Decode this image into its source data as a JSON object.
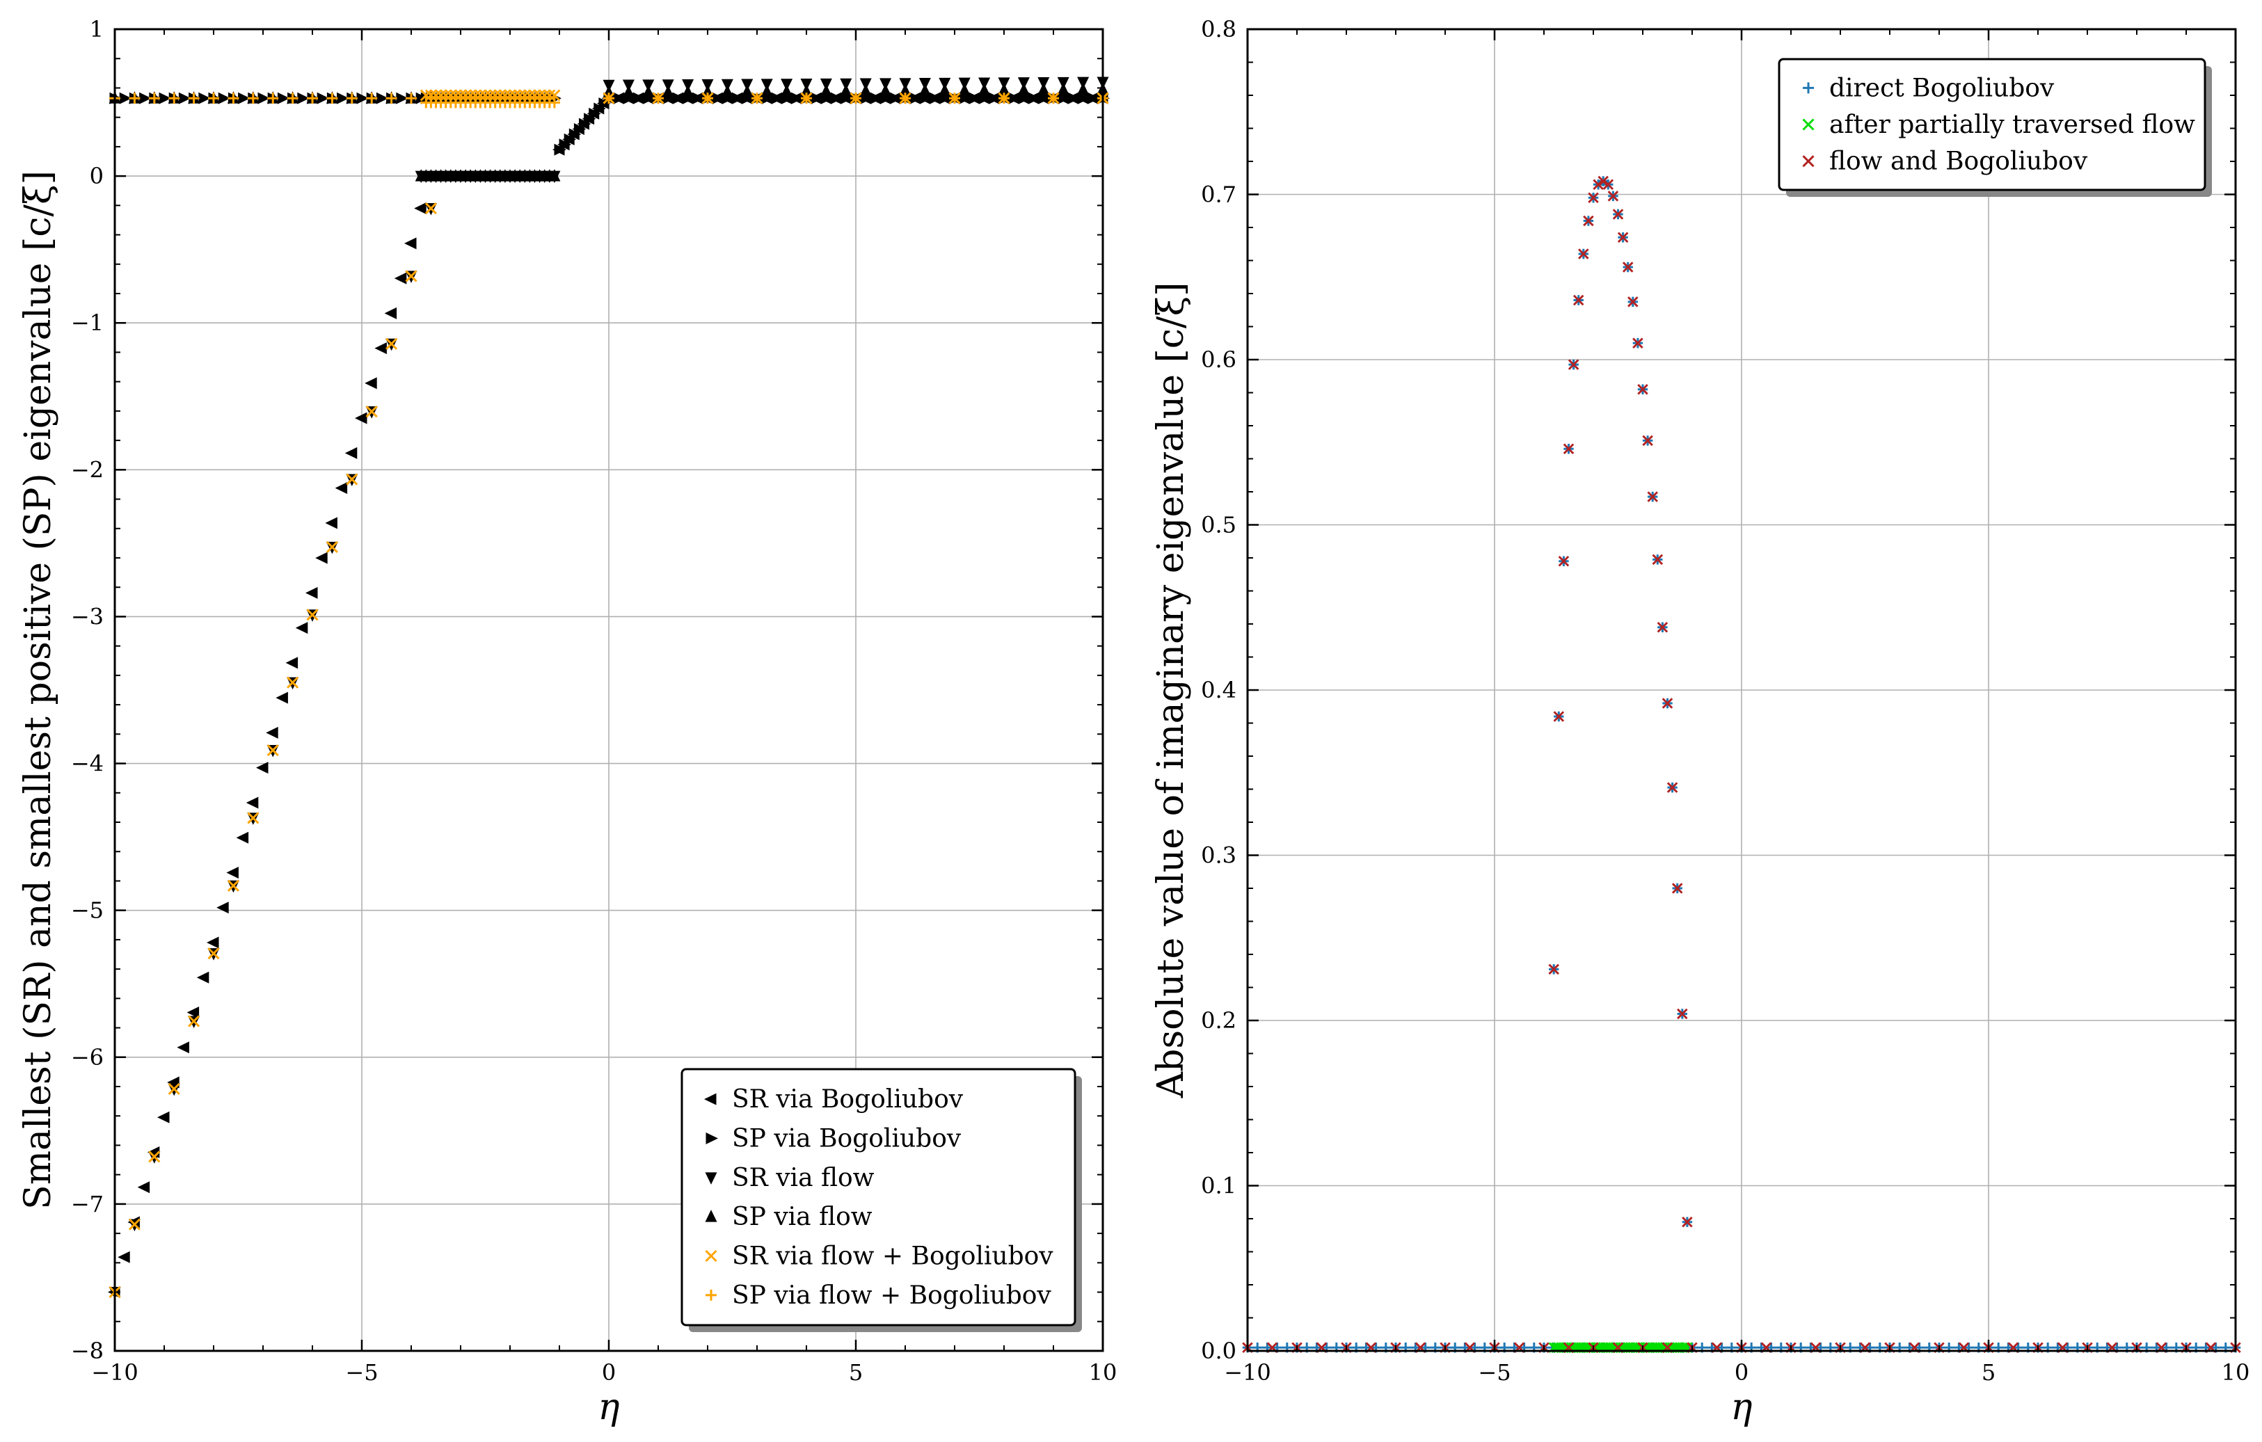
{
  "chart_data": [
    {
      "type": "scatter",
      "xlabel": "η",
      "ylabel": "Smallest (SR) and smallest positive (SP) eigenvalue [c/ξ]",
      "xlim": [
        -10,
        10
      ],
      "ylim": [
        -8,
        1
      ],
      "xticks": [
        {
          "v": -10,
          "label": "−10"
        },
        {
          "v": -5,
          "label": "−5"
        },
        {
          "v": 0,
          "label": "0"
        },
        {
          "v": 5,
          "label": "5"
        },
        {
          "v": 10,
          "label": "10"
        }
      ],
      "yticks": [
        {
          "v": -8,
          "label": "−8"
        },
        {
          "v": -7,
          "label": "−7"
        },
        {
          "v": -6,
          "label": "−6"
        },
        {
          "v": -5,
          "label": "−5"
        },
        {
          "v": -4,
          "label": "−4"
        },
        {
          "v": -3,
          "label": "−3"
        },
        {
          "v": -2,
          "label": "−2"
        },
        {
          "v": -1,
          "label": "−1"
        },
        {
          "v": 0,
          "label": "0"
        },
        {
          "v": 1,
          "label": "1"
        }
      ],
      "grid": true,
      "legend_position": "lower-right",
      "series": [
        {
          "name": "SR via Bogoliubov",
          "marker": "triangle-left",
          "color": "#000000",
          "segments": [
            {
              "x_start": -10,
              "x_end": -3.8,
              "dx": 0.2,
              "y_start": -7.6,
              "y_end": -0.22
            },
            {
              "x_start": -1,
              "x_end": 0,
              "dx": 0.1,
              "y_start": 0.18,
              "y_end": 0.53
            },
            {
              "x_start": 0,
              "x_end": 10,
              "dx": 0.2,
              "y_start": 0.53,
              "y_end": 0.53
            }
          ]
        },
        {
          "name": "SP via Bogoliubov",
          "marker": "triangle-right",
          "color": "#000000",
          "segments": [
            {
              "x_start": -10,
              "x_end": -3.8,
              "dx": 0.2,
              "y_start": 0.53,
              "y_end": 0.53
            },
            {
              "x_start": -3.7,
              "x_end": -1.1,
              "dx": 0.1,
              "y_start": 0.53,
              "y_end": 0.53
            },
            {
              "x_start": -1,
              "x_end": 0,
              "dx": 0.1,
              "y_start": 0.18,
              "y_end": 0.53
            },
            {
              "x_start": 0,
              "x_end": 10,
              "dx": 0.2,
              "y_start": 0.53,
              "y_end": 0.53
            }
          ]
        },
        {
          "name": "SR via flow",
          "marker": "triangle-down",
          "color": "#000000",
          "segments": [
            {
              "x_start": -10,
              "x_end": -3.8,
              "dx": 0.4,
              "y_start": -7.6,
              "y_end": -0.22
            },
            {
              "x_start": -3.8,
              "x_end": -1.1,
              "dx": 0.1,
              "y_start": 0,
              "y_end": 0
            },
            {
              "x_start": 0,
              "x_end": 10,
              "dx": 0.4,
              "y_start": 0.62,
              "y_end": 0.64
            }
          ]
        },
        {
          "name": "SP via flow",
          "marker": "triangle-up",
          "color": "#000000",
          "segments": [
            {
              "x_start": -10,
              "x_end": -3.8,
              "dx": 0.4,
              "y_start": 0.53,
              "y_end": 0.53
            },
            {
              "x_start": -3.8,
              "x_end": -1.1,
              "dx": 0.1,
              "y_start": 0,
              "y_end": 0
            },
            {
              "x_start": 0,
              "x_end": 10,
              "dx": 0.4,
              "y_start": 0.57,
              "y_end": 0.59
            }
          ]
        },
        {
          "name": "SR via flow + Bogoliubov",
          "marker": "x",
          "color": "#ffa500",
          "segments": [
            {
              "x_start": -10,
              "x_end": -3.8,
              "dx": 0.4,
              "y_start": -7.6,
              "y_end": -0.22
            },
            {
              "x_start": -3.7,
              "x_end": -1.1,
              "dx": 0.1,
              "y_start": 0.55,
              "y_end": 0.55
            },
            {
              "x_start": 0,
              "x_end": 10,
              "dx": 1,
              "y_start": 0.53,
              "y_end": 0.53
            }
          ]
        },
        {
          "name": "SP via flow + Bogoliubov",
          "marker": "plus",
          "color": "#ffa500",
          "segments": [
            {
              "x_start": -10,
              "x_end": -3.8,
              "dx": 0.4,
              "y_start": 0.53,
              "y_end": 0.53
            },
            {
              "x_start": -3.7,
              "x_end": -1.1,
              "dx": 0.1,
              "y_start": 0.5,
              "y_end": 0.5
            },
            {
              "x_start": 0,
              "x_end": 10,
              "dx": 1,
              "y_start": 0.53,
              "y_end": 0.53
            }
          ]
        }
      ]
    },
    {
      "type": "scatter",
      "xlabel": "η",
      "ylabel": "Absolute value of imaginary eigenvalue [c/ξ]",
      "xlim": [
        -10,
        10
      ],
      "ylim": [
        0,
        0.8
      ],
      "xticks": [
        {
          "v": -10,
          "label": "−10"
        },
        {
          "v": -5,
          "label": "−5"
        },
        {
          "v": 0,
          "label": "0"
        },
        {
          "v": 5,
          "label": "5"
        },
        {
          "v": 10,
          "label": "10"
        }
      ],
      "yticks": [
        {
          "v": 0,
          "label": "0.0"
        },
        {
          "v": 0.1,
          "label": "0.1"
        },
        {
          "v": 0.2,
          "label": "0.2"
        },
        {
          "v": 0.3,
          "label": "0.3"
        },
        {
          "v": 0.4,
          "label": "0.4"
        },
        {
          "v": 0.5,
          "label": "0.5"
        },
        {
          "v": 0.6,
          "label": "0.6"
        },
        {
          "v": 0.7,
          "label": "0.7"
        },
        {
          "v": 0.8,
          "label": "0.8"
        }
      ],
      "grid": true,
      "legend_position": "upper-right",
      "series": [
        {
          "name": "direct Bogoliubov",
          "marker": "plus",
          "color": "#1f77b4",
          "baseline": {
            "x_start": -10,
            "x_end": 10,
            "dx": 0.2,
            "y": 0.002
          },
          "x": [
            -3.8,
            -3.7,
            -3.6,
            -3.5,
            -3.4,
            -3.3,
            -3.2,
            -3.1,
            -3.0,
            -2.9,
            -2.8,
            -2.7,
            -2.6,
            -2.5,
            -2.4,
            -2.3,
            -2.2,
            -2.1,
            -2.0,
            -1.9,
            -1.8,
            -1.7,
            -1.6,
            -1.5,
            -1.4,
            -1.3,
            -1.2,
            -1.1
          ],
          "y": [
            0.231,
            0.384,
            0.478,
            0.546,
            0.597,
            0.636,
            0.664,
            0.684,
            0.698,
            0.706,
            0.708,
            0.706,
            0.699,
            0.688,
            0.674,
            0.656,
            0.635,
            0.61,
            0.582,
            0.551,
            0.517,
            0.479,
            0.438,
            0.392,
            0.341,
            0.28,
            0.204,
            0.078
          ]
        },
        {
          "name": "after partially traversed flow",
          "marker": "x",
          "color": "#00dd00",
          "baseline": {
            "x_start": -3.8,
            "x_end": -1.1,
            "dx": 0.05,
            "y": 0.002
          }
        },
        {
          "name": "flow and Bogoliubov",
          "marker": "x",
          "color": "#b22222",
          "baseline": {
            "x_start": -10,
            "x_end": 10,
            "dx": 0.5,
            "y": 0.002
          },
          "x": [
            -3.8,
            -3.7,
            -3.6,
            -3.5,
            -3.4,
            -3.3,
            -3.2,
            -3.1,
            -3.0,
            -2.9,
            -2.8,
            -2.7,
            -2.6,
            -2.5,
            -2.4,
            -2.3,
            -2.2,
            -2.1,
            -2.0,
            -1.9,
            -1.8,
            -1.7,
            -1.6,
            -1.5,
            -1.4,
            -1.3,
            -1.2,
            -1.1
          ],
          "y": [
            0.231,
            0.384,
            0.478,
            0.546,
            0.597,
            0.636,
            0.664,
            0.684,
            0.698,
            0.706,
            0.708,
            0.706,
            0.699,
            0.688,
            0.674,
            0.656,
            0.635,
            0.61,
            0.582,
            0.551,
            0.517,
            0.479,
            0.438,
            0.392,
            0.341,
            0.28,
            0.204,
            0.078
          ]
        }
      ]
    }
  ]
}
